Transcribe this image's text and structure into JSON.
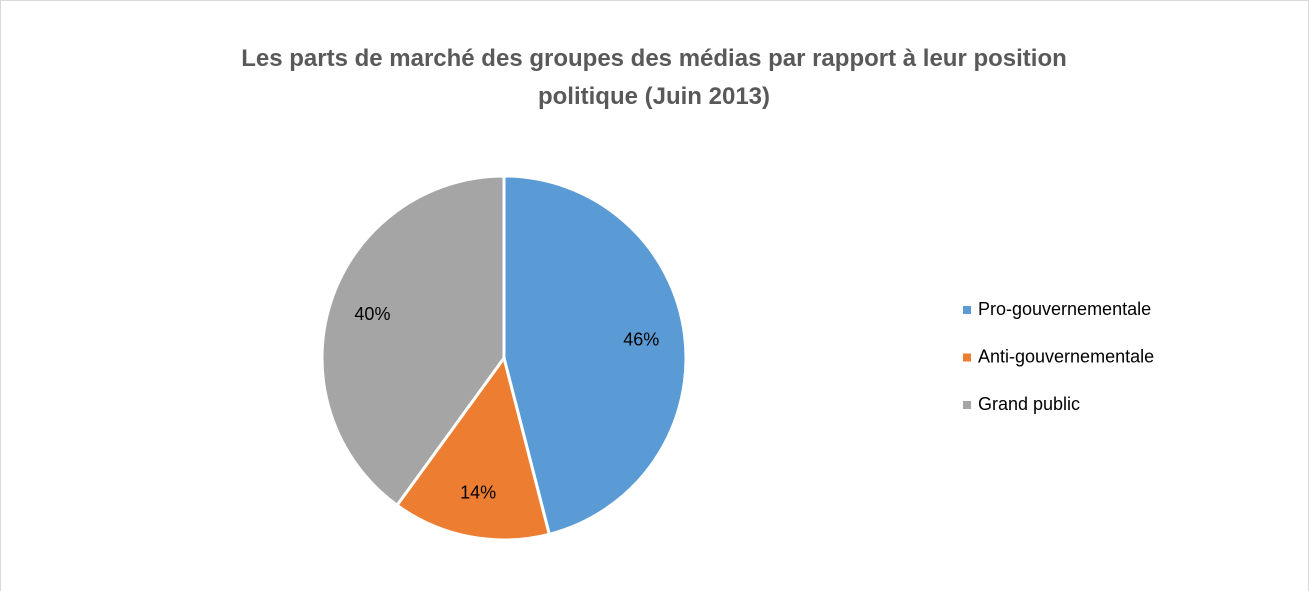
{
  "chart_data": {
    "type": "pie",
    "title": "Les parts de marché des groupes des médias par rapport à leur position politique (Juin 2013)",
    "categories": [
      "Pro-gouvernementale",
      "Anti-gouvernementale",
      "Grand public"
    ],
    "values": [
      46,
      14,
      40
    ],
    "value_labels": [
      "46%",
      "14%",
      "40%"
    ],
    "colors": [
      "#5b9bd5",
      "#ed7d31",
      "#a5a5a5"
    ],
    "legend": "right"
  }
}
